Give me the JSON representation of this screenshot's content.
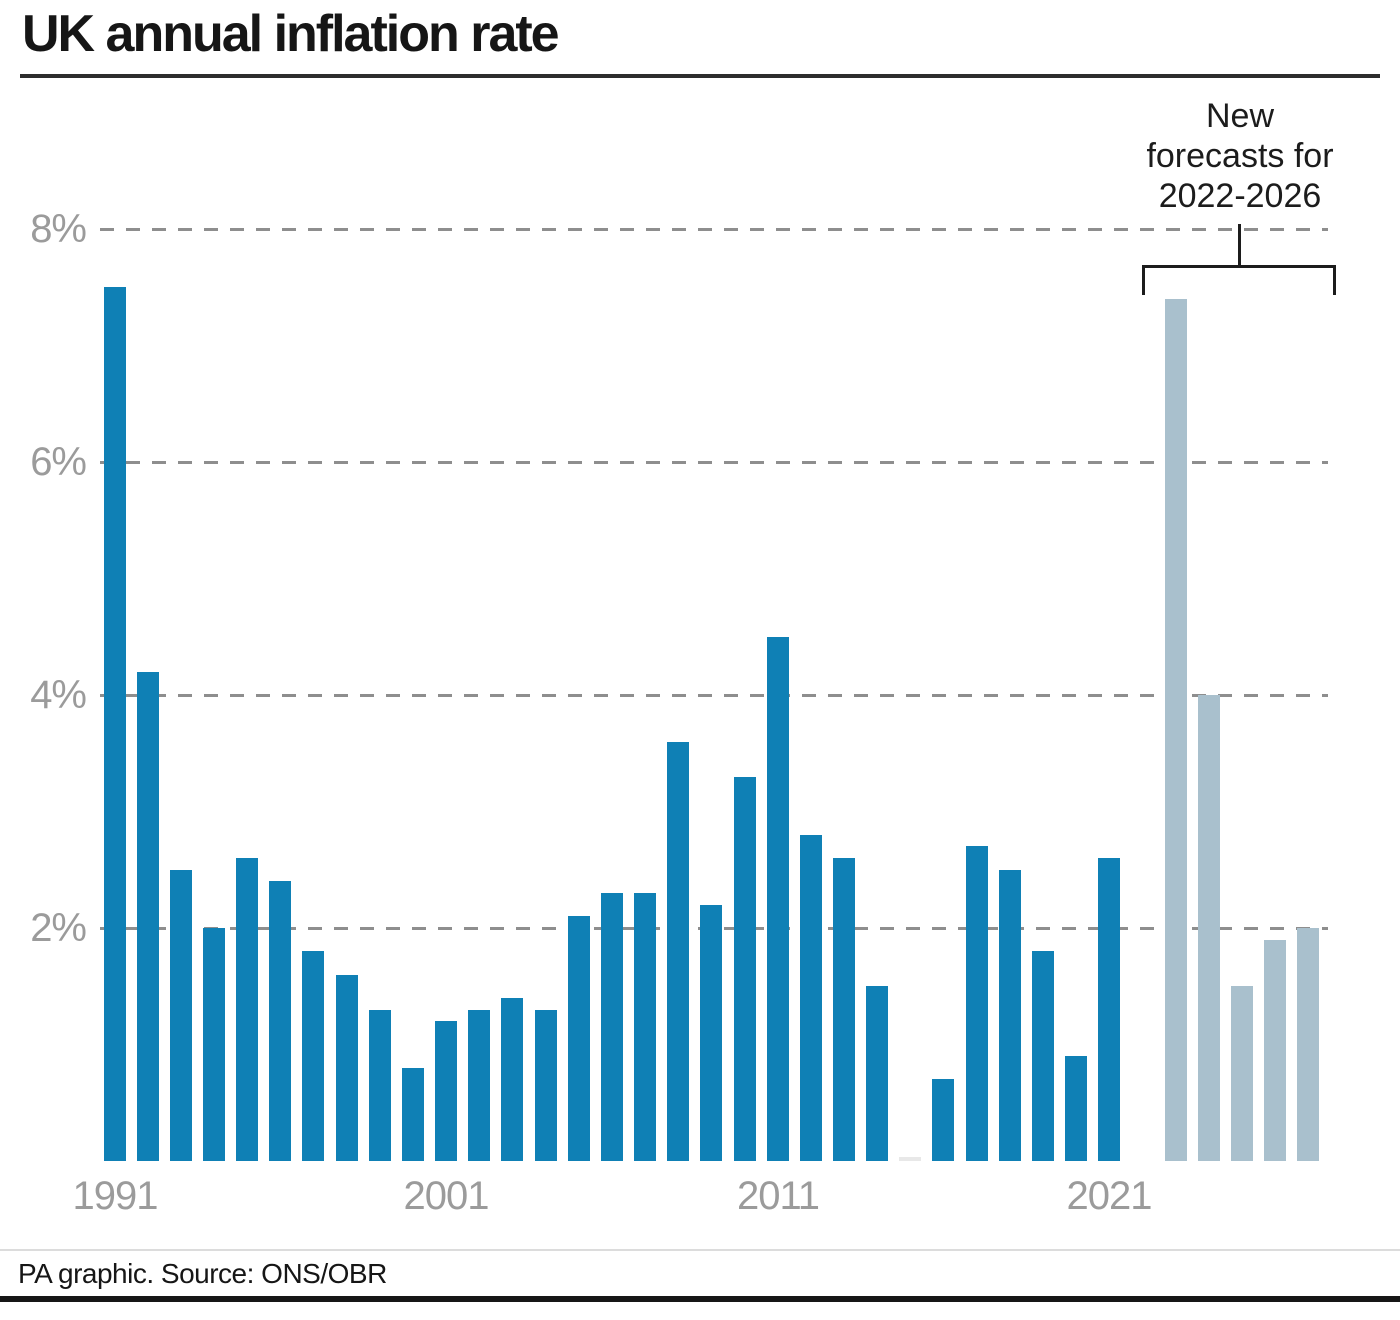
{
  "title": "UK annual inflation rate",
  "annotation": {
    "lines": [
      "New",
      "forecasts for",
      "2022-2026"
    ]
  },
  "footer": {
    "credit": "PA graphic. Source: ONS/OBR"
  },
  "colors": {
    "historical_bar": "#0f80b5",
    "forecast_bar": "#a9c0cd",
    "zero_bar": "#e8e8e8",
    "gridline": "#8e8e8e",
    "axis_label": "#9b9b9b",
    "text": "#161616",
    "rule": "#2d2d2d"
  },
  "chart_data": {
    "type": "bar",
    "title": "UK annual inflation rate",
    "unit": "%",
    "ylim": [
      0,
      8.3
    ],
    "grid": "horizontal-dashed",
    "legend_position": "none",
    "y_ticks": [
      {
        "label": "8%",
        "value": 8
      },
      {
        "label": "6%",
        "value": 6
      },
      {
        "label": "4%",
        "value": 4
      },
      {
        "label": "2%",
        "value": 2
      }
    ],
    "x_ticks": [
      {
        "label": "1991",
        "year": 1991
      },
      {
        "label": "2001",
        "year": 2001
      },
      {
        "label": "2011",
        "year": 2011
      },
      {
        "label": "2021",
        "year": 2021
      }
    ],
    "series": [
      {
        "name": "historical",
        "color": "#0f80b5",
        "points": [
          {
            "year": 1991,
            "value": 7.5
          },
          {
            "year": 1992,
            "value": 4.2
          },
          {
            "year": 1993,
            "value": 2.5
          },
          {
            "year": 1994,
            "value": 2.0
          },
          {
            "year": 1995,
            "value": 2.6
          },
          {
            "year": 1996,
            "value": 2.4
          },
          {
            "year": 1997,
            "value": 1.8
          },
          {
            "year": 1998,
            "value": 1.6
          },
          {
            "year": 1999,
            "value": 1.3
          },
          {
            "year": 2000,
            "value": 0.8
          },
          {
            "year": 2001,
            "value": 1.2
          },
          {
            "year": 2002,
            "value": 1.3
          },
          {
            "year": 2003,
            "value": 1.4
          },
          {
            "year": 2004,
            "value": 1.3
          },
          {
            "year": 2005,
            "value": 2.1
          },
          {
            "year": 2006,
            "value": 2.3
          },
          {
            "year": 2007,
            "value": 2.3
          },
          {
            "year": 2008,
            "value": 3.6
          },
          {
            "year": 2009,
            "value": 2.2
          },
          {
            "year": 2010,
            "value": 3.3
          },
          {
            "year": 2011,
            "value": 4.5
          },
          {
            "year": 2012,
            "value": 2.8
          },
          {
            "year": 2013,
            "value": 2.6
          },
          {
            "year": 2014,
            "value": 1.5
          },
          {
            "year": 2015,
            "value": 0.0,
            "color": "#e8e8e8"
          },
          {
            "year": 2016,
            "value": 0.7
          },
          {
            "year": 2017,
            "value": 2.7
          },
          {
            "year": 2018,
            "value": 2.5
          },
          {
            "year": 2019,
            "value": 1.8
          },
          {
            "year": 2020,
            "value": 0.9
          },
          {
            "year": 2021,
            "value": 2.6
          }
        ]
      },
      {
        "name": "forecast",
        "color": "#a9c0cd",
        "points": [
          {
            "year": 2022,
            "value": 7.4
          },
          {
            "year": 2023,
            "value": 4.0
          },
          {
            "year": 2024,
            "value": 1.5
          },
          {
            "year": 2025,
            "value": 1.9
          },
          {
            "year": 2026,
            "value": 2.0
          }
        ]
      }
    ]
  }
}
